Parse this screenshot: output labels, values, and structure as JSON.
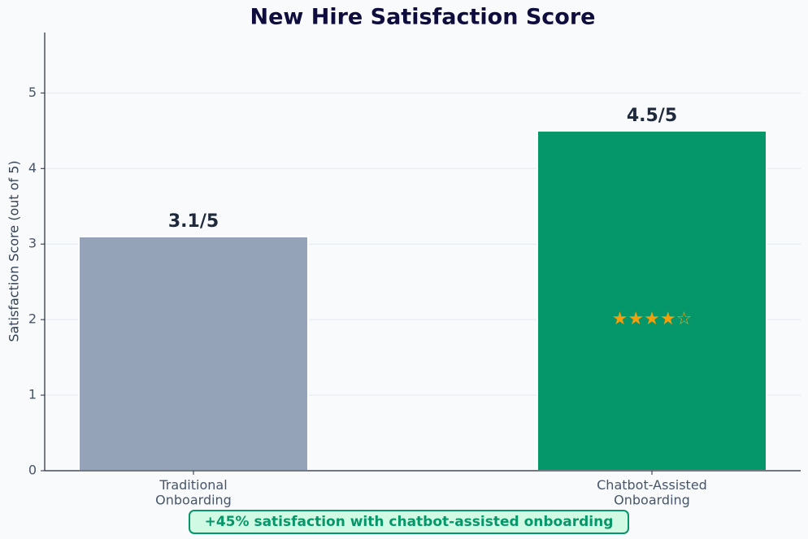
{
  "chart_data": {
    "type": "bar",
    "title": "New Hire Satisfaction Score",
    "categories": [
      "Traditional\nOnboarding",
      "Chatbot-Assisted\nOnboarding"
    ],
    "values": [
      3.1,
      4.5
    ],
    "value_labels": [
      "3.1/5",
      "4.5/5"
    ],
    "colors": [
      "#94a3b8",
      "#059669"
    ],
    "ylabel": "Satisfaction Score (out of 5)",
    "ylim": [
      0,
      5.8
    ],
    "yticks": [
      0,
      1,
      2,
      3,
      4,
      5
    ],
    "grid": true,
    "annotations": [
      {
        "text": "★★★★☆",
        "category": 1,
        "y": 2,
        "color": "#f59e0b"
      }
    ],
    "footnote": "+45% satisfaction with chatbot-assisted onboarding"
  }
}
